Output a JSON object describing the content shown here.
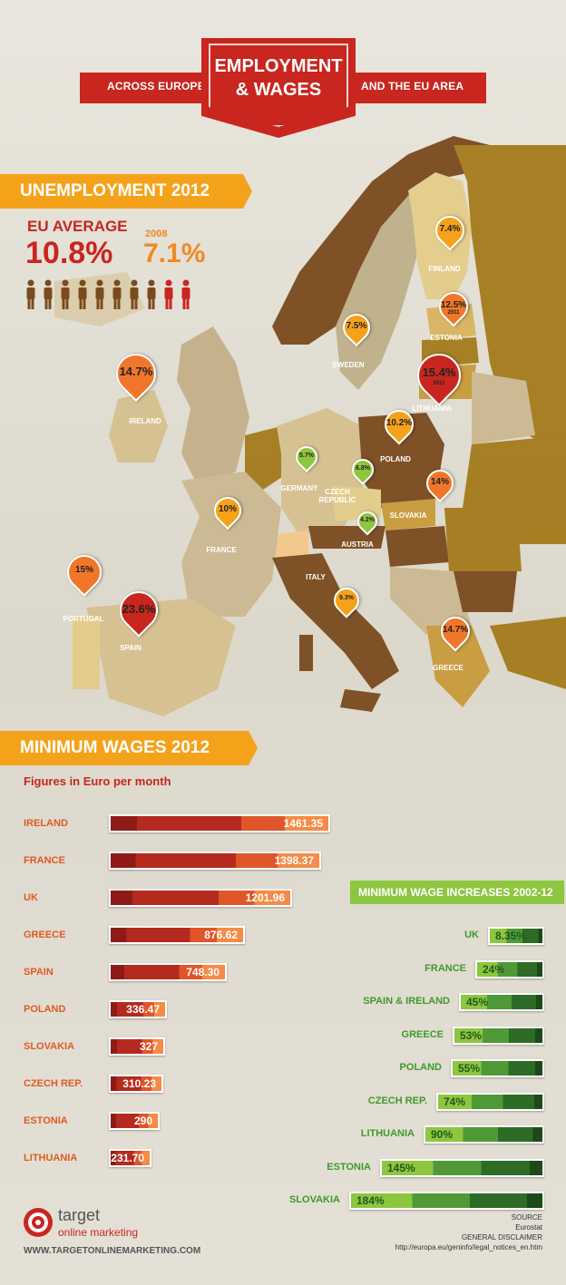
{
  "header": {
    "left_ribbon": "ACROSS EUROPE",
    "right_ribbon": "AND THE EU AREA",
    "title_line1": "EMPLOYMENT",
    "title_line2": "& WAGES"
  },
  "colors": {
    "red": "#c8261f",
    "orange": "#f5a21b",
    "dark_orange": "#e05a21",
    "green": "#8dc63f",
    "dark_green": "#2e6b26",
    "brown": "#7a4a1e"
  },
  "unemployment": {
    "section_title": "UNEMPLOYMENT 2012",
    "eu_label": "EU AVERAGE",
    "eu_value": "10.8%",
    "year_2008_label": "2008",
    "value_2008": "7.1%",
    "people_icon": "person-icon"
  },
  "map_countries": [
    {
      "name": "IRELAND",
      "value": "14.7%",
      "level": "high"
    },
    {
      "name": "PORTUGAL",
      "value": "15%",
      "level": "high"
    },
    {
      "name": "SPAIN",
      "value": "23.6%",
      "level": "max"
    },
    {
      "name": "FRANCE",
      "value": "10%",
      "level": "mid"
    },
    {
      "name": "GERMANY",
      "value": "5.7%",
      "level": "low"
    },
    {
      "name": "CZECH REPUBLIC",
      "value": "6.8%",
      "level": "low"
    },
    {
      "name": "AUSTRIA",
      "value": "4.2%",
      "level": "low"
    },
    {
      "name": "ITALY",
      "value": "9.3%",
      "level": "mid"
    },
    {
      "name": "GREECE",
      "value": "14.7%",
      "level": "high"
    },
    {
      "name": "SLOVAKIA",
      "value": "14%",
      "level": "high"
    },
    {
      "name": "POLAND",
      "value": "10.2%",
      "level": "mid"
    },
    {
      "name": "LITHUANIA",
      "value": "15.4%",
      "level": "max",
      "note": "2011"
    },
    {
      "name": "ESTONIA",
      "value": "12.5%",
      "level": "high",
      "note": "2011"
    },
    {
      "name": "SWEDEN",
      "value": "7.5%",
      "level": "mid"
    },
    {
      "name": "FINLAND",
      "value": "7.4%",
      "level": "mid"
    }
  ],
  "wages": {
    "section_title": "MINIMUM WAGES 2012",
    "subtitle": "Figures in Euro per month"
  },
  "chart_data": [
    {
      "type": "bar",
      "title": "MINIMUM WAGES 2012",
      "subtitle": "Figures in Euro per month",
      "categories": [
        "IRELAND",
        "FRANCE",
        "UK",
        "GREECE",
        "SPAIN",
        "POLAND",
        "SLOVAKIA",
        "CZECH REP.",
        "ESTONIA",
        "LITHUANIA"
      ],
      "values": [
        1461.35,
        1398.37,
        1201.96,
        876.62,
        748.3,
        336.47,
        327,
        310.23,
        290,
        231.7
      ],
      "labels": [
        "1461.35",
        "1398.37",
        "1201.96",
        "876.62",
        "748.30",
        "336.47",
        "327",
        "310.23",
        "290",
        "231.70"
      ],
      "xlim": [
        0,
        1500
      ]
    },
    {
      "type": "bar",
      "title": "MINIMUM WAGE INCREASES 2002-12",
      "categories": [
        "UK",
        "FRANCE",
        "SPAIN & IRELAND",
        "GREECE",
        "POLAND",
        "CZECH REP.",
        "LITHUANIA",
        "ESTONIA",
        "SLOVAKIA"
      ],
      "values": [
        8.35,
        24,
        45,
        53,
        55,
        74,
        90,
        145,
        184
      ],
      "labels": [
        "8.35%",
        "24%",
        "45%",
        "53%",
        "55%",
        "74%",
        "90%",
        "145%",
        "184%"
      ],
      "xlim": [
        0,
        190
      ]
    }
  ],
  "footer": {
    "brand_name": "target",
    "brand_sub": "online marketing",
    "website": "WWW.TARGETONLINEMARKETING.COM",
    "source_label": "SOURCE",
    "source": "Eurostat",
    "disclaimer_label": "GENERAL DISCLAIMER",
    "disclaimer_url": "http://europa.eu/geninfo/legal_notices_en.htm"
  }
}
